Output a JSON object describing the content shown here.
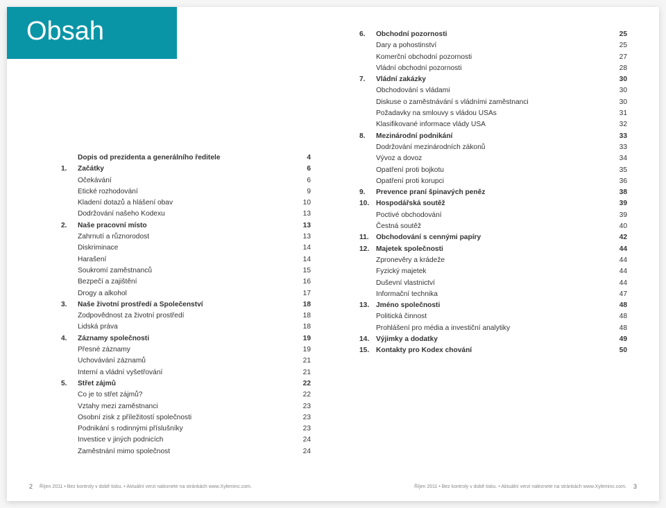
{
  "heading": "Obsah",
  "footer_left_pagenum": "2",
  "footer_right_pagenum": "3",
  "footer_text": "Říjen 2011 • Bez kontroly v době tisku.  • Aktuální verzi naleznete na stránkách www.Xyleminc.com.",
  "left": [
    {
      "num": "",
      "label": "Dopis od prezidenta a generálního ředitele",
      "pg": "4",
      "bold": true
    },
    {
      "num": "1.",
      "label": "Začátky",
      "pg": "6",
      "bold": true
    },
    {
      "num": "",
      "label": "Očekávání",
      "pg": "6",
      "bold": false
    },
    {
      "num": "",
      "label": "Etické rozhodování",
      "pg": "9",
      "bold": false
    },
    {
      "num": "",
      "label": "Kladení dotazů a hlášení obav",
      "pg": "10",
      "bold": false
    },
    {
      "num": "",
      "label": "Dodržování našeho Kodexu",
      "pg": "13",
      "bold": false
    },
    {
      "num": "2.",
      "label": "Naše pracovní místo",
      "pg": "13",
      "bold": true
    },
    {
      "num": "",
      "label": "Zahrnutí a různorodost",
      "pg": "13",
      "bold": false
    },
    {
      "num": "",
      "label": "Diskriminace",
      "pg": "14",
      "bold": false
    },
    {
      "num": "",
      "label": "Harašení",
      "pg": "14",
      "bold": false
    },
    {
      "num": "",
      "label": "Soukromí zaměstnanců",
      "pg": "15",
      "bold": false
    },
    {
      "num": "",
      "label": "Bezpečí a zajištění",
      "pg": "16",
      "bold": false
    },
    {
      "num": "",
      "label": "Drogy a alkohol",
      "pg": "17",
      "bold": false
    },
    {
      "num": "3.",
      "label": "Naše životní prostředí a Společenství",
      "pg": "18",
      "bold": true
    },
    {
      "num": "",
      "label": "Zodpovědnost za životní prostředí",
      "pg": "18",
      "bold": false
    },
    {
      "num": "",
      "label": "Lidská práva",
      "pg": "18",
      "bold": false
    },
    {
      "num": "4.",
      "label": "Záznamy společnosti",
      "pg": "19",
      "bold": true
    },
    {
      "num": "",
      "label": "Přesné záznamy",
      "pg": "19",
      "bold": false
    },
    {
      "num": "",
      "label": "Uchovávání záznamů",
      "pg": "21",
      "bold": false
    },
    {
      "num": "",
      "label": "Interní a vládní vyšetřování",
      "pg": "21",
      "bold": false
    },
    {
      "num": "5.",
      "label": "Střet zájmů",
      "pg": "22",
      "bold": true
    },
    {
      "num": "",
      "label": "Co je to střet zájmů?",
      "pg": "22",
      "bold": false
    },
    {
      "num": "",
      "label": "Vztahy mezi zaměstnanci",
      "pg": "23",
      "bold": false
    },
    {
      "num": "",
      "label": "Osobní zisk z příležitostí společnosti",
      "pg": "23",
      "bold": false
    },
    {
      "num": "",
      "label": "Podnikání s rodinnými příslušníky",
      "pg": "23",
      "bold": false
    },
    {
      "num": "",
      "label": "Investice v jiných podnicích",
      "pg": "24",
      "bold": false
    },
    {
      "num": "",
      "label": "Zaměstnání mimo společnost",
      "pg": "24",
      "bold": false
    }
  ],
  "right": [
    {
      "num": "6.",
      "label": "Obchodní pozornosti",
      "pg": "25",
      "bold": true
    },
    {
      "num": "",
      "label": "Dary a pohostinství",
      "pg": "25",
      "bold": false
    },
    {
      "num": "",
      "label": "Komerční obchodní pozornosti",
      "pg": "27",
      "bold": false
    },
    {
      "num": "",
      "label": "Vládní obchodní pozornosti",
      "pg": "28",
      "bold": false
    },
    {
      "num": "7.",
      "label": "Vládní zakázky",
      "pg": "30",
      "bold": true
    },
    {
      "num": "",
      "label": "Obchodování s vládami",
      "pg": "30",
      "bold": false
    },
    {
      "num": "",
      "label": "Diskuse o zaměstnávání s vládními zaměstnanci",
      "pg": "30",
      "bold": false
    },
    {
      "num": "",
      "label": "Požadavky na smlouvy s vládou USAs",
      "pg": "31",
      "bold": false
    },
    {
      "num": "",
      "label": "Klasifikované informace vlády USA",
      "pg": "32",
      "bold": false
    },
    {
      "num": "8.",
      "label": "Mezinárodní podnikání",
      "pg": "33",
      "bold": true
    },
    {
      "num": "",
      "label": "Dodržování mezinárodních zákonů",
      "pg": "33",
      "bold": false
    },
    {
      "num": "",
      "label": "Vývoz a dovoz",
      "pg": "34",
      "bold": false
    },
    {
      "num": "",
      "label": "Opatření proti bojkotu",
      "pg": "35",
      "bold": false
    },
    {
      "num": "",
      "label": "Opatření proti korupci",
      "pg": "36",
      "bold": false
    },
    {
      "num": "9.",
      "label": "Prevence praní špinavých peněz",
      "pg": "38",
      "bold": true
    },
    {
      "num": "10.",
      "label": "Hospodářská soutěž",
      "pg": "39",
      "bold": true
    },
    {
      "num": "",
      "label": "Poctivé obchodování",
      "pg": "39",
      "bold": false
    },
    {
      "num": "",
      "label": "Čestná soutěž",
      "pg": "40",
      "bold": false
    },
    {
      "num": "11.",
      "label": "Obchodování s cennými papíry",
      "pg": "42",
      "bold": true
    },
    {
      "num": "12.",
      "label": "Majetek společnosti",
      "pg": "44",
      "bold": true
    },
    {
      "num": "",
      "label": "Zpronevěry a krádeže",
      "pg": "44",
      "bold": false
    },
    {
      "num": "",
      "label": "Fyzický majetek",
      "pg": "44",
      "bold": false
    },
    {
      "num": "",
      "label": "Duševní vlastnictví",
      "pg": "44",
      "bold": false
    },
    {
      "num": "",
      "label": "Informační technika",
      "pg": "47",
      "bold": false
    },
    {
      "num": "13.",
      "label": "Jméno společnosti",
      "pg": "48",
      "bold": true
    },
    {
      "num": "",
      "label": "Politická činnost",
      "pg": "48",
      "bold": false
    },
    {
      "num": "",
      "label": "Prohlášení pro média a investiční analytiky",
      "pg": "48",
      "bold": false
    },
    {
      "num": "14.",
      "label": "Výjimky a dodatky",
      "pg": "49",
      "bold": true
    },
    {
      "num": "15.",
      "label": "Kontakty pro Kodex chování",
      "pg": "50",
      "bold": true
    }
  ]
}
